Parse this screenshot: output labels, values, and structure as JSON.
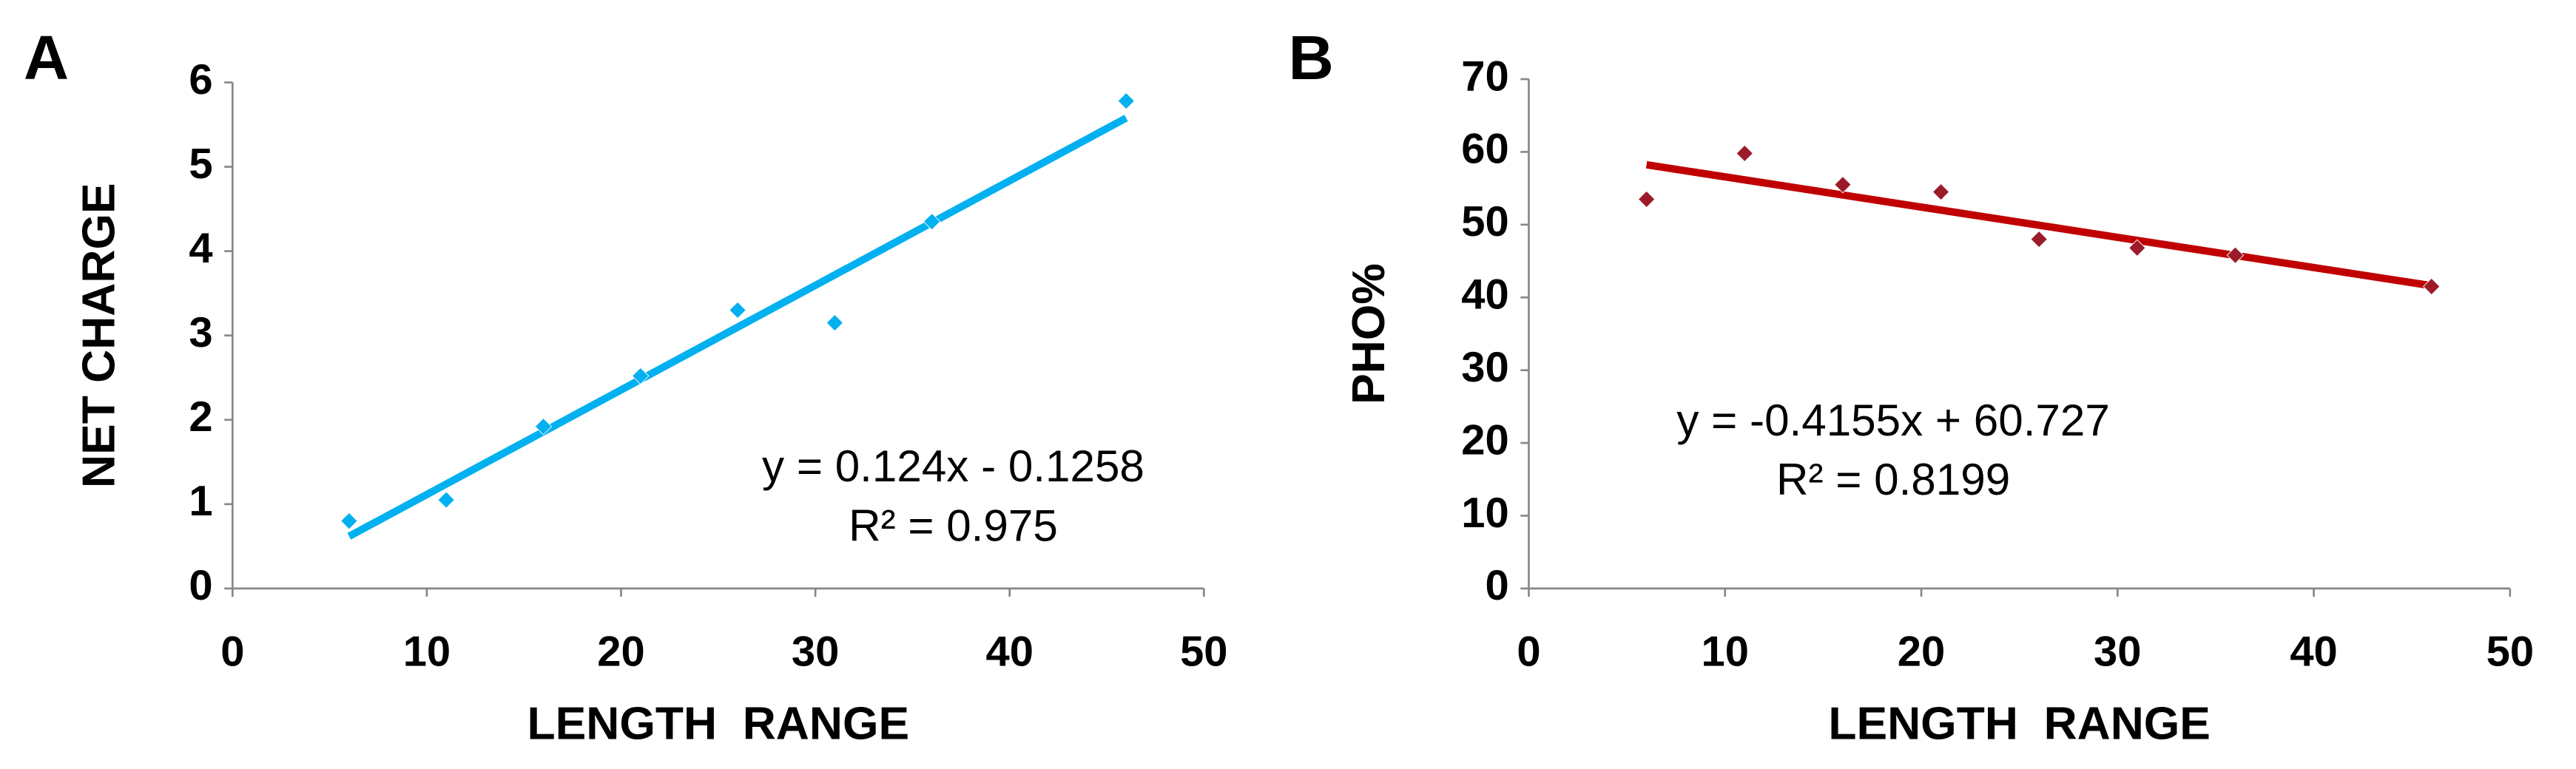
{
  "chart_data": [
    {
      "type": "scatter",
      "panel_label": "A",
      "x_label": "LENGTH  RANGE",
      "y_label": "NET CHARGE",
      "x": [
        6,
        11,
        16,
        21,
        26,
        31,
        36,
        46
      ],
      "series": [
        {
          "color": "#00b0f0",
          "values": [
            0.8,
            1.05,
            1.92,
            2.52,
            3.3,
            3.15,
            4.35,
            5.78
          ]
        }
      ],
      "trendline": {
        "color": "#00b0f0",
        "slope": 0.124,
        "intercept": -0.1258,
        "equation": "y = 0.124x - 0.1258",
        "r2_label": "R² = 0.975"
      },
      "xlim": [
        0,
        50
      ],
      "xticks": [
        0,
        10,
        20,
        30,
        40,
        50
      ],
      "ylim": [
        0,
        6
      ],
      "yticks": [
        0,
        1,
        2,
        3,
        4,
        5,
        6
      ],
      "grid": false
    },
    {
      "type": "scatter",
      "panel_label": "B",
      "x_label": "LENGTH  RANGE",
      "y_label": "PHO%",
      "x": [
        6,
        11,
        16,
        21,
        26,
        31,
        36,
        46
      ],
      "series": [
        {
          "color": "#9b1b2a",
          "values": [
            53.5,
            59.8,
            55.5,
            54.5,
            48,
            46.8,
            45.8,
            41.5
          ]
        }
      ],
      "trendline": {
        "color": "#c00000",
        "slope": -0.4155,
        "intercept": 60.727,
        "equation": "y = -0.4155x + 60.727",
        "r2_label": "R² = 0.8199"
      },
      "xlim": [
        0,
        50
      ],
      "xticks": [
        0,
        10,
        20,
        30,
        40,
        50
      ],
      "ylim": [
        0,
        70
      ],
      "yticks": [
        0,
        10,
        20,
        30,
        40,
        50,
        60,
        70
      ],
      "grid": false
    }
  ]
}
